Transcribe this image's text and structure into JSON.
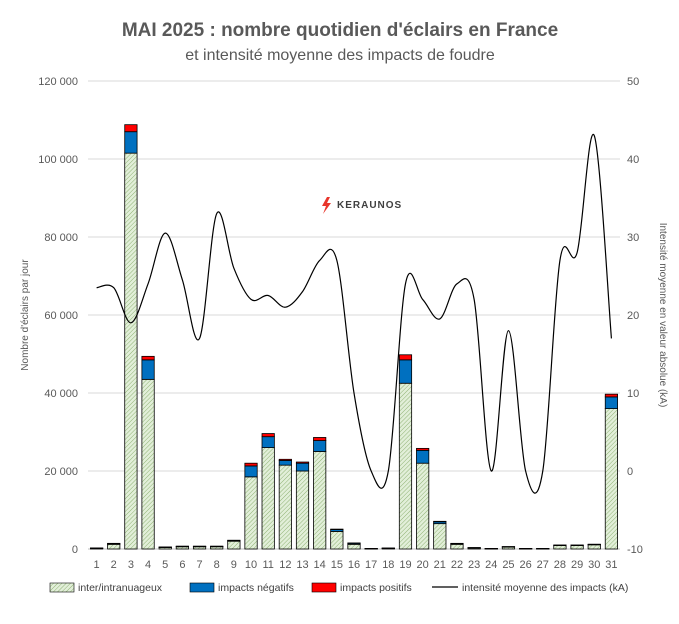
{
  "chart_data": {
    "type": "bar",
    "title": "MAI 2025 : nombre quotidien d'éclairs en France",
    "subtitle": "et intensité moyenne des impacts de foudre",
    "ylabel": "Nombre d'éclairs par jour",
    "y2label": "Intensité moyenne en valeur absolue (kA)",
    "brand": "KERAUNOS",
    "ylim": [
      0,
      120000
    ],
    "y2lim": [
      -10,
      50
    ],
    "yticks": [
      "0",
      "20 000",
      "40 000",
      "60 000",
      "80 000",
      "100 000",
      "120 000"
    ],
    "y2ticks": [
      "-10",
      "0",
      "10",
      "20",
      "30",
      "40",
      "50"
    ],
    "grid": true,
    "legend_position": "bottom",
    "categories": [
      "1",
      "2",
      "3",
      "4",
      "5",
      "6",
      "7",
      "8",
      "9",
      "10",
      "11",
      "12",
      "13",
      "14",
      "15",
      "16",
      "17",
      "18",
      "19",
      "20",
      "21",
      "22",
      "23",
      "24",
      "25",
      "26",
      "27",
      "28",
      "29",
      "30",
      "31"
    ],
    "series": [
      {
        "name": "inter/intranuageux",
        "kind": "bar",
        "color": "#e2efd9",
        "values": [
          200,
          1200,
          101500,
          43500,
          400,
          600,
          600,
          600,
          2000,
          18500,
          26000,
          21500,
          20000,
          25000,
          4500,
          1200,
          100,
          200,
          42500,
          22000,
          6500,
          1200,
          300,
          100,
          500,
          100,
          100,
          900,
          900,
          1100,
          36000
        ]
      },
      {
        "name": "impacts négatifs",
        "kind": "bar",
        "color": "#0070c0",
        "values": [
          50,
          200,
          5500,
          5000,
          100,
          100,
          100,
          100,
          200,
          2800,
          2800,
          1200,
          2000,
          2800,
          500,
          300,
          30,
          30,
          6000,
          3300,
          500,
          200,
          50,
          30,
          100,
          30,
          20,
          100,
          100,
          100,
          3000
        ]
      },
      {
        "name": "impacts positifs",
        "kind": "bar",
        "color": "#ff0000",
        "values": [
          10,
          50,
          1800,
          900,
          20,
          20,
          20,
          20,
          50,
          700,
          800,
          300,
          300,
          800,
          100,
          50,
          10,
          10,
          1300,
          500,
          100,
          50,
          10,
          10,
          20,
          10,
          10,
          20,
          20,
          20,
          700
        ]
      },
      {
        "name": "intensité moyenne des impacts (kA)",
        "kind": "line",
        "axis": "secondary",
        "color": "#000000",
        "values": [
          23.5,
          23.5,
          19,
          24,
          30.5,
          24.5,
          17,
          33,
          26,
          22,
          22.5,
          21,
          23,
          27,
          27,
          10,
          0,
          0,
          24,
          22,
          19.5,
          24,
          22,
          0,
          18,
          0,
          0,
          27,
          28,
          43,
          17
        ]
      }
    ]
  }
}
